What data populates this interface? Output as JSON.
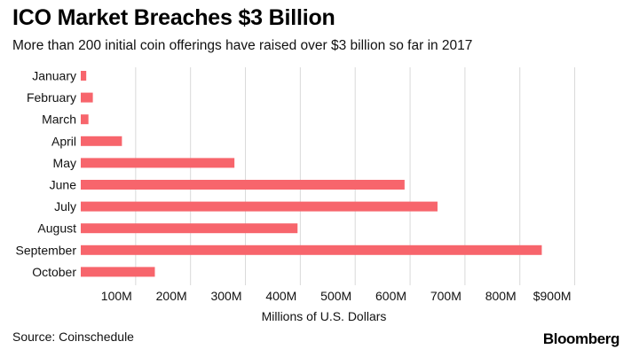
{
  "header": {
    "title": "ICO Market Breaches $3 Billion",
    "subtitle": "More than 200 initial coin offerings have raised over $3 billion so far in 2017"
  },
  "footer": {
    "source": "Source: Coinschedule",
    "brand": "Bloomberg"
  },
  "colors": {
    "bar": "#f7656c",
    "grid": "#d9d9d9",
    "text": "#111111"
  },
  "chart_data": {
    "type": "bar",
    "orientation": "horizontal",
    "categories": [
      "January",
      "February",
      "March",
      "April",
      "May",
      "June",
      "July",
      "August",
      "September",
      "October"
    ],
    "values": [
      10,
      22,
      14,
      75,
      280,
      590,
      650,
      395,
      840,
      135
    ],
    "tick_values": [
      100,
      200,
      300,
      400,
      500,
      600,
      700,
      800,
      900
    ],
    "tick_labels": [
      "100M",
      "200M",
      "300M",
      "400M",
      "500M",
      "600M",
      "700M",
      "800M",
      "$900M"
    ],
    "xlabel": "Millions of U.S. Dollars",
    "xlim": [
      0,
      900
    ],
    "grid": "vertical"
  }
}
